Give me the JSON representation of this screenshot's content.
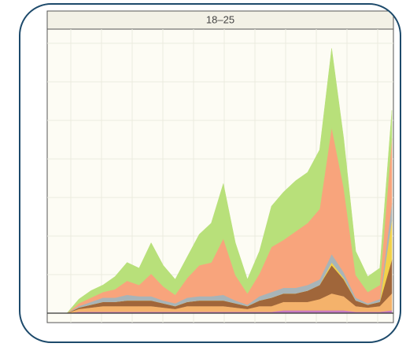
{
  "chart_data": {
    "type": "stacked-area",
    "title": "18–25",
    "x": [
      0,
      1,
      2,
      3,
      4,
      5,
      6,
      7,
      8,
      9,
      10,
      11,
      12,
      13,
      14,
      15,
      16,
      17,
      18,
      19,
      20,
      21,
      22,
      23,
      24,
      25,
      26,
      27
    ],
    "xlim": [
      0,
      27
    ],
    "ylim": [
      0,
      100
    ],
    "grid": true,
    "series": [
      {
        "color": "#c77cc0",
        "values": [
          0,
          0.5,
          0.5,
          0.5,
          0.5,
          0.5,
          0.5,
          0.5,
          0.5,
          0.5,
          0.5,
          0.5,
          0.5,
          0.5,
          0.5,
          0.5,
          0.5,
          0.5,
          1,
          1,
          1,
          1,
          1,
          1,
          0.5,
          0.5,
          0.5,
          1
        ]
      },
      {
        "color": "#f4b26b",
        "values": [
          0,
          1,
          1.5,
          2,
          2,
          2,
          2,
          2,
          1.5,
          1,
          2,
          2,
          2,
          2,
          1.5,
          1,
          2,
          2,
          3,
          3,
          3,
          4,
          6,
          5,
          2,
          1.5,
          2,
          6
        ]
      },
      {
        "color": "#a0663a",
        "values": [
          0,
          0.5,
          1,
          1.5,
          1.5,
          2,
          2,
          2,
          1.5,
          1,
          1.5,
          2,
          2,
          2,
          1.5,
          1,
          2,
          3,
          3,
          3,
          4,
          5,
          10,
          6,
          2,
          1,
          1.5,
          12
        ]
      },
      {
        "color": "#f2d24a",
        "values": [
          0,
          0,
          0,
          0,
          0,
          0,
          0,
          0,
          0,
          0,
          0,
          0,
          0,
          0,
          0,
          0,
          0,
          0,
          0,
          0,
          0,
          0,
          1,
          0.5,
          0,
          0,
          0,
          14
        ]
      },
      {
        "color": "#a8b4b8",
        "values": [
          0,
          0.5,
          1,
          1.5,
          1.5,
          2,
          1.5,
          1.5,
          1,
          1,
          1.5,
          1.5,
          1.5,
          2,
          1,
          0.5,
          1.5,
          2,
          2,
          2,
          2,
          2,
          3,
          2,
          1,
          0.5,
          1,
          6
        ]
      },
      {
        "color": "#f8a47c",
        "values": [
          0,
          1,
          1.5,
          2,
          3,
          5,
          4,
          8,
          5,
          3,
          7,
          11,
          12,
          20,
          9,
          4,
          8,
          16,
          17,
          20,
          22,
          25,
          45,
          30,
          8,
          4,
          5,
          23
        ]
      },
      {
        "color": "#b8e07a",
        "values": [
          0,
          1.5,
          2.5,
          2.5,
          4.5,
          6.5,
          6,
          11,
          7.5,
          5.5,
          7.5,
          11,
          14,
          19.5,
          11.5,
          5,
          8,
          14.5,
          17,
          18,
          18,
          21,
          28,
          17.5,
          8.5,
          5.5,
          6,
          10
        ]
      }
    ]
  }
}
